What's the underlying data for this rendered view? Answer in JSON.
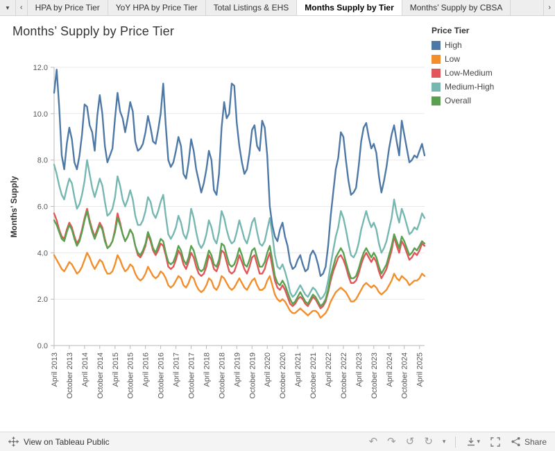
{
  "glyphs": {
    "caret_down": "▾",
    "sheet_caret": "▼",
    "chevron_left": "‹",
    "chevron_right": "›",
    "undo": "↶",
    "redo": "↷",
    "revert": "↺",
    "refresh": "↻"
  },
  "tab_bar": {
    "tabs": [
      {
        "label": "HPA by Price Tier",
        "active": false
      },
      {
        "label": "YoY HPA by Price Tier",
        "active": false
      },
      {
        "label": "Total Listings & EHS",
        "active": false
      },
      {
        "label": "Months Supply by Tier",
        "active": true
      },
      {
        "label": "Months’ Supply by CBSA",
        "active": false
      }
    ]
  },
  "toolbar": {
    "view_on_label": "View on Tableau Public",
    "share_label": "Share",
    "icons": [
      "tableau-logo",
      "undo",
      "redo",
      "revert",
      "refresh",
      "caret-down",
      "download",
      "fullscreen",
      "share"
    ]
  },
  "chart_data": {
    "type": "line",
    "title": "Months’ Supply by Price Tier",
    "ylabel": "Months’ Supply",
    "legend_title": "Price Tier",
    "legend_position": "top-right",
    "grid": true,
    "ylim": [
      0,
      12
    ],
    "yticks": [
      0,
      2,
      4,
      6,
      8,
      10,
      12
    ],
    "n_points": 147,
    "x_tick_step": 6,
    "x_tick_labels": [
      "April 2013",
      "October 2013",
      "April 2014",
      "October 2014",
      "April 2015",
      "October 2015",
      "April 2016",
      "October 2016",
      "April 2017",
      "October 2017",
      "April 2018",
      "October 2018",
      "April 2019",
      "October 2019",
      "April 2020",
      "October 2020",
      "April 2021",
      "October 2021",
      "April 2022",
      "October 2022",
      "April 2023",
      "October 2023",
      "April 2024",
      "October 2024",
      "April 2025"
    ],
    "series": [
      {
        "name": "High",
        "color": "#4e79a7",
        "values": [
          10.9,
          11.9,
          10.3,
          8.2,
          7.6,
          8.7,
          9.4,
          8.9,
          7.9,
          7.6,
          8.2,
          9.1,
          10.4,
          10.3,
          9.5,
          9.2,
          8.4,
          9.9,
          10.8,
          10.0,
          8.6,
          7.9,
          8.2,
          8.5,
          9.8,
          10.9,
          10.1,
          9.8,
          9.2,
          9.8,
          10.5,
          10.1,
          8.8,
          8.4,
          8.5,
          8.7,
          9.2,
          9.9,
          9.4,
          8.8,
          8.7,
          9.3,
          10.0,
          11.3,
          9.5,
          8.0,
          7.7,
          7.9,
          8.4,
          9.0,
          8.6,
          7.4,
          7.2,
          7.9,
          8.9,
          8.4,
          7.6,
          7.1,
          6.6,
          7.0,
          7.6,
          8.4,
          8.0,
          6.7,
          6.5,
          7.4,
          9.4,
          10.5,
          9.8,
          10.0,
          11.3,
          11.2,
          9.6,
          8.6,
          7.9,
          7.4,
          7.6,
          8.3,
          9.3,
          9.5,
          8.6,
          8.4,
          9.7,
          9.4,
          8.2,
          6.0,
          5.2,
          4.7,
          4.5,
          5.0,
          5.3,
          4.7,
          4.3,
          3.6,
          3.3,
          3.4,
          3.7,
          3.9,
          3.5,
          3.2,
          3.3,
          3.9,
          4.1,
          3.9,
          3.5,
          3.0,
          3.1,
          3.4,
          4.3,
          5.6,
          6.6,
          7.6,
          8.1,
          9.2,
          9.0,
          8.0,
          7.1,
          6.5,
          6.6,
          6.8,
          7.7,
          8.8,
          9.4,
          9.6,
          9.0,
          8.5,
          8.7,
          8.3,
          7.3,
          6.6,
          7.1,
          7.7,
          8.5,
          9.1,
          9.5,
          8.8,
          8.2,
          9.7,
          9.1,
          8.5,
          7.9,
          8.0,
          8.2,
          8.1,
          8.4,
          8.7,
          8.2
        ]
      },
      {
        "name": "Low",
        "color": "#f28e2b",
        "values": [
          3.9,
          3.7,
          3.5,
          3.3,
          3.2,
          3.4,
          3.6,
          3.5,
          3.3,
          3.1,
          3.2,
          3.4,
          3.7,
          4.0,
          3.8,
          3.5,
          3.3,
          3.5,
          3.7,
          3.6,
          3.3,
          3.1,
          3.1,
          3.2,
          3.5,
          3.9,
          3.7,
          3.4,
          3.2,
          3.3,
          3.5,
          3.4,
          3.1,
          2.9,
          2.8,
          2.9,
          3.1,
          3.4,
          3.2,
          3.0,
          2.9,
          3.0,
          3.2,
          3.1,
          2.9,
          2.6,
          2.5,
          2.6,
          2.8,
          3.0,
          2.9,
          2.6,
          2.5,
          2.7,
          3.0,
          2.9,
          2.6,
          2.4,
          2.3,
          2.4,
          2.6,
          2.9,
          2.8,
          2.5,
          2.4,
          2.6,
          3.0,
          2.9,
          2.7,
          2.5,
          2.4,
          2.5,
          2.7,
          2.9,
          2.7,
          2.5,
          2.4,
          2.6,
          2.8,
          2.9,
          2.6,
          2.4,
          2.4,
          2.5,
          2.8,
          3.0,
          2.6,
          2.2,
          2.0,
          1.9,
          2.0,
          1.9,
          1.7,
          1.5,
          1.4,
          1.4,
          1.5,
          1.6,
          1.5,
          1.4,
          1.3,
          1.4,
          1.5,
          1.5,
          1.4,
          1.2,
          1.3,
          1.4,
          1.6,
          1.9,
          2.1,
          2.3,
          2.4,
          2.5,
          2.4,
          2.3,
          2.1,
          1.9,
          1.9,
          2.0,
          2.2,
          2.4,
          2.6,
          2.7,
          2.6,
          2.5,
          2.6,
          2.5,
          2.3,
          2.2,
          2.3,
          2.4,
          2.6,
          2.8,
          3.1,
          2.9,
          2.8,
          3.0,
          2.9,
          2.8,
          2.6,
          2.7,
          2.8,
          2.8,
          2.9,
          3.1,
          3.0
        ]
      },
      {
        "name": "Low-Medium",
        "color": "#e15759",
        "values": [
          5.7,
          5.4,
          5.0,
          4.7,
          4.6,
          5.0,
          5.3,
          5.1,
          4.7,
          4.4,
          4.6,
          5.0,
          5.5,
          5.9,
          5.4,
          5.0,
          4.7,
          5.0,
          5.3,
          5.1,
          4.6,
          4.2,
          4.3,
          4.5,
          5.0,
          5.7,
          5.3,
          4.8,
          4.5,
          4.7,
          5.0,
          4.8,
          4.3,
          3.9,
          3.8,
          4.0,
          4.3,
          4.8,
          4.5,
          4.1,
          3.9,
          4.1,
          4.4,
          4.3,
          3.9,
          3.4,
          3.3,
          3.4,
          3.7,
          4.1,
          3.9,
          3.5,
          3.3,
          3.6,
          4.0,
          3.8,
          3.4,
          3.1,
          3.0,
          3.1,
          3.4,
          3.9,
          3.7,
          3.3,
          3.2,
          3.5,
          4.1,
          4.0,
          3.6,
          3.2,
          3.1,
          3.2,
          3.5,
          3.9,
          3.6,
          3.3,
          3.1,
          3.4,
          3.8,
          3.9,
          3.5,
          3.1,
          3.1,
          3.3,
          3.7,
          4.0,
          3.4,
          2.8,
          2.5,
          2.4,
          2.6,
          2.4,
          2.1,
          1.8,
          1.7,
          1.8,
          2.0,
          2.1,
          2.0,
          1.8,
          1.7,
          1.9,
          2.1,
          2.0,
          1.8,
          1.6,
          1.7,
          1.9,
          2.3,
          2.8,
          3.2,
          3.5,
          3.8,
          3.9,
          3.7,
          3.4,
          3.0,
          2.7,
          2.7,
          2.8,
          3.1,
          3.5,
          3.8,
          4.0,
          3.8,
          3.6,
          3.8,
          3.6,
          3.2,
          2.9,
          3.1,
          3.3,
          3.7,
          4.1,
          4.7,
          4.3,
          4.0,
          4.5,
          4.3,
          4.0,
          3.7,
          3.8,
          4.0,
          3.9,
          4.1,
          4.4,
          4.3
        ]
      },
      {
        "name": "Medium-High",
        "color": "#76b7b2",
        "values": [
          7.8,
          7.4,
          6.9,
          6.5,
          6.3,
          6.8,
          7.2,
          7.0,
          6.4,
          5.9,
          6.1,
          6.5,
          7.1,
          8.0,
          7.4,
          6.8,
          6.4,
          6.8,
          7.2,
          6.9,
          6.2,
          5.6,
          5.7,
          5.9,
          6.4,
          7.3,
          6.9,
          6.3,
          6.0,
          6.3,
          6.7,
          6.3,
          5.6,
          5.2,
          5.2,
          5.4,
          5.8,
          6.4,
          6.2,
          5.7,
          5.5,
          5.8,
          6.2,
          6.5,
          5.6,
          4.8,
          4.6,
          4.8,
          5.1,
          5.6,
          5.3,
          4.8,
          4.6,
          5.0,
          5.9,
          5.5,
          4.9,
          4.4,
          4.2,
          4.4,
          4.8,
          5.4,
          5.1,
          4.6,
          4.4,
          4.9,
          5.8,
          5.5,
          5.0,
          4.6,
          4.4,
          4.5,
          4.9,
          5.4,
          5.0,
          4.6,
          4.4,
          4.8,
          5.3,
          5.5,
          4.9,
          4.4,
          4.3,
          4.5,
          5.0,
          5.5,
          4.8,
          3.9,
          3.4,
          3.3,
          3.5,
          3.2,
          2.8,
          2.3,
          2.1,
          2.2,
          2.4,
          2.6,
          2.4,
          2.2,
          2.1,
          2.3,
          2.5,
          2.4,
          2.2,
          2.0,
          2.1,
          2.3,
          2.8,
          3.5,
          4.1,
          4.7,
          5.1,
          5.8,
          5.5,
          5.0,
          4.4,
          3.9,
          3.8,
          4.0,
          4.4,
          5.0,
          5.4,
          5.8,
          5.4,
          5.1,
          5.3,
          5.0,
          4.4,
          4.0,
          4.2,
          4.5,
          5.0,
          5.5,
          6.3,
          5.7,
          5.3,
          5.9,
          5.6,
          5.2,
          4.8,
          4.9,
          5.1,
          5.0,
          5.3,
          5.7,
          5.5
        ]
      },
      {
        "name": "Overall",
        "color": "#59a14f",
        "values": [
          5.4,
          5.2,
          4.9,
          4.6,
          4.5,
          4.9,
          5.2,
          5.0,
          4.6,
          4.3,
          4.5,
          4.9,
          5.4,
          5.8,
          5.3,
          4.9,
          4.6,
          4.9,
          5.2,
          5.0,
          4.5,
          4.2,
          4.3,
          4.5,
          4.9,
          5.5,
          5.2,
          4.8,
          4.5,
          4.7,
          5.0,
          4.8,
          4.3,
          4.0,
          3.9,
          4.1,
          4.4,
          4.9,
          4.6,
          4.2,
          4.0,
          4.3,
          4.6,
          4.5,
          4.0,
          3.6,
          3.5,
          3.6,
          3.9,
          4.3,
          4.1,
          3.7,
          3.5,
          3.8,
          4.3,
          4.1,
          3.7,
          3.3,
          3.2,
          3.3,
          3.7,
          4.1,
          3.9,
          3.5,
          3.4,
          3.7,
          4.4,
          4.3,
          3.9,
          3.5,
          3.4,
          3.5,
          3.8,
          4.2,
          3.9,
          3.5,
          3.4,
          3.7,
          4.1,
          4.2,
          3.8,
          3.4,
          3.4,
          3.6,
          4.0,
          4.3,
          3.7,
          3.0,
          2.7,
          2.6,
          2.8,
          2.6,
          2.3,
          2.0,
          1.8,
          1.9,
          2.1,
          2.3,
          2.1,
          1.9,
          1.8,
          2.0,
          2.2,
          2.1,
          1.9,
          1.7,
          1.8,
          2.0,
          2.4,
          3.0,
          3.4,
          3.8,
          4.0,
          4.2,
          4.0,
          3.6,
          3.2,
          2.9,
          2.9,
          3.0,
          3.3,
          3.7,
          4.0,
          4.2,
          4.0,
          3.8,
          4.0,
          3.8,
          3.4,
          3.1,
          3.3,
          3.5,
          3.9,
          4.3,
          4.8,
          4.5,
          4.2,
          4.7,
          4.5,
          4.2,
          3.9,
          4.0,
          4.2,
          4.1,
          4.3,
          4.5,
          4.4
        ]
      }
    ]
  }
}
